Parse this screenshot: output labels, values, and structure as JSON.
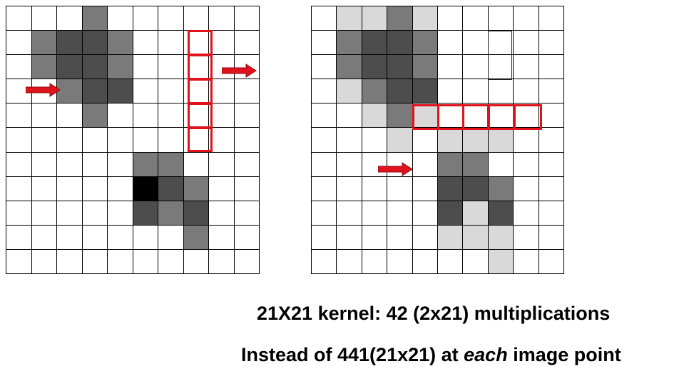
{
  "diagram": {
    "left_grid": {
      "rows": 11,
      "cols": 10,
      "shaded_cells": [
        {
          "r": 0,
          "c": 3,
          "shade": "mid"
        },
        {
          "r": 1,
          "c": 1,
          "shade": "mid"
        },
        {
          "r": 1,
          "c": 2,
          "shade": "dark"
        },
        {
          "r": 1,
          "c": 3,
          "shade": "dark"
        },
        {
          "r": 1,
          "c": 4,
          "shade": "mid"
        },
        {
          "r": 2,
          "c": 1,
          "shade": "mid"
        },
        {
          "r": 2,
          "c": 2,
          "shade": "dark"
        },
        {
          "r": 2,
          "c": 3,
          "shade": "dark"
        },
        {
          "r": 2,
          "c": 4,
          "shade": "mid"
        },
        {
          "r": 3,
          "c": 2,
          "shade": "mid"
        },
        {
          "r": 3,
          "c": 3,
          "shade": "dark"
        },
        {
          "r": 3,
          "c": 4,
          "shade": "dark"
        },
        {
          "r": 4,
          "c": 3,
          "shade": "mid"
        },
        {
          "r": 6,
          "c": 5,
          "shade": "mid"
        },
        {
          "r": 6,
          "c": 6,
          "shade": "mid"
        },
        {
          "r": 7,
          "c": 5,
          "shade": "black"
        },
        {
          "r": 7,
          "c": 6,
          "shade": "dark"
        },
        {
          "r": 7,
          "c": 7,
          "shade": "mid"
        },
        {
          "r": 8,
          "c": 5,
          "shade": "dark"
        },
        {
          "r": 8,
          "c": 6,
          "shade": "mid"
        },
        {
          "r": 8,
          "c": 7,
          "shade": "dark"
        },
        {
          "r": 9,
          "c": 7,
          "shade": "mid"
        }
      ]
    },
    "right_grid": {
      "rows": 11,
      "cols": 10,
      "shaded_cells": [
        {
          "r": 0,
          "c": 1,
          "shade": "light"
        },
        {
          "r": 0,
          "c": 2,
          "shade": "light"
        },
        {
          "r": 0,
          "c": 3,
          "shade": "mid"
        },
        {
          "r": 0,
          "c": 4,
          "shade": "light"
        },
        {
          "r": 1,
          "c": 1,
          "shade": "mid"
        },
        {
          "r": 1,
          "c": 2,
          "shade": "dark"
        },
        {
          "r": 1,
          "c": 3,
          "shade": "dark"
        },
        {
          "r": 1,
          "c": 4,
          "shade": "mid"
        },
        {
          "r": 2,
          "c": 1,
          "shade": "mid"
        },
        {
          "r": 2,
          "c": 2,
          "shade": "dark"
        },
        {
          "r": 2,
          "c": 3,
          "shade": "dark"
        },
        {
          "r": 2,
          "c": 4,
          "shade": "mid"
        },
        {
          "r": 3,
          "c": 1,
          "shade": "light"
        },
        {
          "r": 3,
          "c": 2,
          "shade": "mid"
        },
        {
          "r": 3,
          "c": 3,
          "shade": "dark"
        },
        {
          "r": 3,
          "c": 4,
          "shade": "dark"
        },
        {
          "r": 4,
          "c": 2,
          "shade": "light"
        },
        {
          "r": 4,
          "c": 3,
          "shade": "mid"
        },
        {
          "r": 4,
          "c": 4,
          "shade": "light"
        },
        {
          "r": 5,
          "c": 3,
          "shade": "light"
        },
        {
          "r": 5,
          "c": 5,
          "shade": "light"
        },
        {
          "r": 5,
          "c": 6,
          "shade": "light"
        },
        {
          "r": 5,
          "c": 7,
          "shade": "light"
        },
        {
          "r": 6,
          "c": 5,
          "shade": "mid"
        },
        {
          "r": 6,
          "c": 6,
          "shade": "mid"
        },
        {
          "r": 7,
          "c": 5,
          "shade": "dark"
        },
        {
          "r": 7,
          "c": 6,
          "shade": "dark"
        },
        {
          "r": 7,
          "c": 7,
          "shade": "mid"
        },
        {
          "r": 8,
          "c": 5,
          "shade": "dark"
        },
        {
          "r": 8,
          "c": 6,
          "shade": "light"
        },
        {
          "r": 8,
          "c": 7,
          "shade": "dark"
        },
        {
          "r": 9,
          "c": 5,
          "shade": "light"
        },
        {
          "r": 9,
          "c": 6,
          "shade": "light"
        },
        {
          "r": 9,
          "c": 7,
          "shade": "light"
        },
        {
          "r": 10,
          "c": 7,
          "shade": "light"
        }
      ]
    },
    "shade_colors": {
      "light": "#d9d9d9",
      "mid": "#7a7a7a",
      "dark": "#4d4d4d",
      "black": "#000000"
    },
    "highlight_color": "#e0121b"
  },
  "caption": {
    "line1": "21X21 kernel: 42 (2x21) multiplications",
    "line2_pre": "Instead of 441(21x21) at ",
    "line2_em": "each",
    "line2_post": " image point"
  }
}
